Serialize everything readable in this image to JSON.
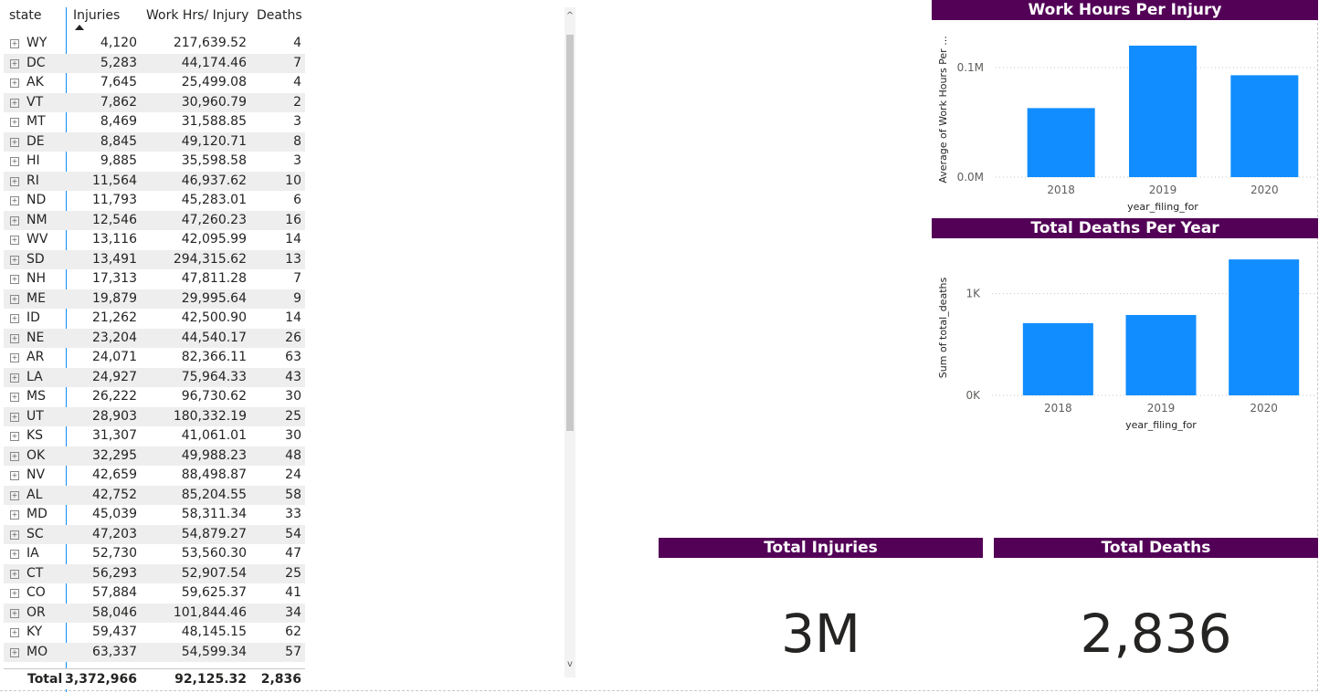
{
  "table": {
    "headers": {
      "state": "state",
      "injuries": "Injuries",
      "work_hrs": "Work Hrs/ Injury",
      "deaths": "Deaths"
    },
    "rows": [
      {
        "state": "WY",
        "injuries": "4,120",
        "work_hrs": "217,639.52",
        "deaths": "4"
      },
      {
        "state": "DC",
        "injuries": "5,283",
        "work_hrs": "44,174.46",
        "deaths": "7"
      },
      {
        "state": "AK",
        "injuries": "7,645",
        "work_hrs": "25,499.08",
        "deaths": "4"
      },
      {
        "state": "VT",
        "injuries": "7,862",
        "work_hrs": "30,960.79",
        "deaths": "2"
      },
      {
        "state": "MT",
        "injuries": "8,469",
        "work_hrs": "31,588.85",
        "deaths": "3"
      },
      {
        "state": "DE",
        "injuries": "8,845",
        "work_hrs": "49,120.71",
        "deaths": "8"
      },
      {
        "state": "HI",
        "injuries": "9,885",
        "work_hrs": "35,598.58",
        "deaths": "3"
      },
      {
        "state": "RI",
        "injuries": "11,564",
        "work_hrs": "46,937.62",
        "deaths": "10"
      },
      {
        "state": "ND",
        "injuries": "11,793",
        "work_hrs": "45,283.01",
        "deaths": "6"
      },
      {
        "state": "NM",
        "injuries": "12,546",
        "work_hrs": "47,260.23",
        "deaths": "16"
      },
      {
        "state": "WV",
        "injuries": "13,116",
        "work_hrs": "42,095.99",
        "deaths": "14"
      },
      {
        "state": "SD",
        "injuries": "13,491",
        "work_hrs": "294,315.62",
        "deaths": "13"
      },
      {
        "state": "NH",
        "injuries": "17,313",
        "work_hrs": "47,811.28",
        "deaths": "7"
      },
      {
        "state": "ME",
        "injuries": "19,879",
        "work_hrs": "29,995.64",
        "deaths": "9"
      },
      {
        "state": "ID",
        "injuries": "21,262",
        "work_hrs": "42,500.90",
        "deaths": "14"
      },
      {
        "state": "NE",
        "injuries": "23,204",
        "work_hrs": "44,540.17",
        "deaths": "26"
      },
      {
        "state": "AR",
        "injuries": "24,071",
        "work_hrs": "82,366.11",
        "deaths": "63"
      },
      {
        "state": "LA",
        "injuries": "24,927",
        "work_hrs": "75,964.33",
        "deaths": "43"
      },
      {
        "state": "MS",
        "injuries": "26,222",
        "work_hrs": "96,730.62",
        "deaths": "30"
      },
      {
        "state": "UT",
        "injuries": "28,903",
        "work_hrs": "180,332.19",
        "deaths": "25"
      },
      {
        "state": "KS",
        "injuries": "31,307",
        "work_hrs": "41,061.01",
        "deaths": "30"
      },
      {
        "state": "OK",
        "injuries": "32,295",
        "work_hrs": "49,988.23",
        "deaths": "48"
      },
      {
        "state": "NV",
        "injuries": "42,659",
        "work_hrs": "88,498.87",
        "deaths": "24"
      },
      {
        "state": "AL",
        "injuries": "42,752",
        "work_hrs": "85,204.55",
        "deaths": "58"
      },
      {
        "state": "MD",
        "injuries": "45,039",
        "work_hrs": "58,311.34",
        "deaths": "33"
      },
      {
        "state": "SC",
        "injuries": "47,203",
        "work_hrs": "54,879.27",
        "deaths": "54"
      },
      {
        "state": "IA",
        "injuries": "52,730",
        "work_hrs": "53,560.30",
        "deaths": "47"
      },
      {
        "state": "CT",
        "injuries": "56,293",
        "work_hrs": "52,907.54",
        "deaths": "25"
      },
      {
        "state": "CO",
        "injuries": "57,884",
        "work_hrs": "59,625.37",
        "deaths": "41"
      },
      {
        "state": "OR",
        "injuries": "58,046",
        "work_hrs": "101,844.46",
        "deaths": "34"
      },
      {
        "state": "KY",
        "injuries": "59,437",
        "work_hrs": "48,145.15",
        "deaths": "62"
      },
      {
        "state": "MO",
        "injuries": "63,337",
        "work_hrs": "54,599.34",
        "deaths": "57"
      }
    ],
    "total": {
      "label": "Total",
      "injuries": "3,372,966",
      "work_hrs": "92,125.32",
      "deaths": "2,836"
    },
    "expand_glyph": "+"
  },
  "scrollbar": {
    "up_glyph": "^",
    "down_glyph": "v"
  },
  "chart_data": [
    {
      "type": "bar",
      "title": "Work Hours Per Injury",
      "categories": [
        "2018",
        "2019",
        "2020"
      ],
      "values": [
        63000,
        120000,
        93000
      ],
      "xlabel": "year_filing_for",
      "ylabel": "Average of Work Hours Per ...",
      "ylim": [
        0,
        130000
      ],
      "yticks": [
        {
          "value": 0,
          "label": "0.0M"
        },
        {
          "value": 100000,
          "label": "0.1M"
        }
      ],
      "bar_color": "#118dff",
      "grid": true
    },
    {
      "type": "bar",
      "title": "Total Deaths Per Year",
      "categories": [
        "2018",
        "2019",
        "2020"
      ],
      "values": [
        710,
        790,
        1336
      ],
      "xlabel": "year_filing_for",
      "ylabel": "Sum of total_deaths",
      "ylim": [
        0,
        1400
      ],
      "yticks": [
        {
          "value": 0,
          "label": "0K"
        },
        {
          "value": 1000,
          "label": "1K"
        }
      ],
      "bar_color": "#118dff",
      "grid": true
    }
  ],
  "cards": [
    {
      "title": "Total Injuries",
      "value": "3M"
    },
    {
      "title": "Total Deaths",
      "value": "2,836"
    }
  ],
  "colors": {
    "title_bg": "#530057",
    "bar": "#118dff",
    "accent_line": "#118dff"
  }
}
